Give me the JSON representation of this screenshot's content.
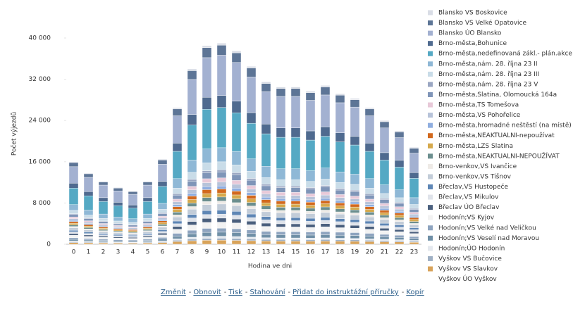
{
  "chart_data": {
    "type": "stacked_bar",
    "x_label": "Hodina ve dni",
    "y_label": "Počet výjezdů",
    "categories": [
      "0",
      "1",
      "2",
      "3",
      "4",
      "5",
      "6",
      "7",
      "8",
      "9",
      "10",
      "11",
      "12",
      "13",
      "14",
      "15",
      "16",
      "17",
      "18",
      "19",
      "20",
      "21",
      "22",
      "23"
    ],
    "ylim": [
      0,
      40000
    ],
    "yticks": [
      0,
      {
        "value": 8000,
        "label": "8 000"
      },
      {
        "value": 16000,
        "label": "16 000"
      },
      {
        "value": 24000,
        "label": "24 000"
      },
      {
        "value": 32000,
        "label": "32 000"
      },
      {
        "value": 40000,
        "label": "40 000"
      }
    ],
    "grid": false,
    "series": [
      {
        "name": "Blansko VS Boskovice",
        "color": "#d9dde6",
        "values": [
          160,
          138,
          122,
          110,
          103,
          122,
          165,
          265,
          340,
          385,
          390,
          375,
          345,
          315,
          305,
          305,
          297,
          308,
          292,
          283,
          265,
          240,
          220,
          188
        ]
      },
      {
        "name": "Blansko VS Velké Opatovice",
        "color": "#5d7596",
        "values": [
          800,
          690,
          610,
          550,
          515,
          610,
          825,
          1325,
          1700,
          1925,
          1950,
          1875,
          1725,
          1575,
          1525,
          1525,
          1485,
          1540,
          1460,
          1415,
          1325,
          1200,
          1100,
          940
        ]
      },
      {
        "name": "Blansko ÚO Blansko",
        "color": "#a3b1d1",
        "values": [
          3200,
          2760,
          2440,
          2200,
          2060,
          2440,
          3300,
          5300,
          6800,
          7700,
          7800,
          7500,
          6900,
          6300,
          6100,
          6100,
          5940,
          6160,
          5840,
          5660,
          5300,
          4800,
          4400,
          3760
        ]
      },
      {
        "name": "Brno-města,Bohunice",
        "color": "#4f6a8f",
        "values": [
          960,
          828,
          732,
          660,
          618,
          732,
          990,
          1590,
          2040,
          2310,
          2340,
          2250,
          2070,
          1890,
          1830,
          1830,
          1782,
          1848,
          1752,
          1698,
          1590,
          1440,
          1320,
          1128
        ]
      },
      {
        "name": "Brno-města,nedefinovaná zákl.- plán.akce",
        "color": "#55a9c4",
        "values": [
          3200,
          2760,
          2440,
          2200,
          2060,
          2440,
          3300,
          5300,
          6800,
          7700,
          7800,
          7500,
          6900,
          6300,
          6100,
          6100,
          5940,
          6160,
          5840,
          5660,
          5300,
          4800,
          4400,
          3760
        ]
      },
      {
        "name": "Brno-města,nám. 28. října 23 II",
        "color": "#8fb8d6",
        "values": [
          1120,
          966,
          854,
          770,
          721,
          854,
          1155,
          1855,
          2380,
          2695,
          2730,
          2625,
          2415,
          2205,
          2135,
          2135,
          2079,
          2156,
          2044,
          1981,
          1855,
          1680,
          1540,
          1316
        ]
      },
      {
        "name": "Brno-města,nám. 28. října 23 III",
        "color": "#c9dce8",
        "values": [
          640,
          552,
          488,
          440,
          412,
          488,
          660,
          1060,
          1360,
          1540,
          1560,
          1500,
          1380,
          1260,
          1220,
          1220,
          1188,
          1232,
          1168,
          1132,
          1060,
          960,
          880,
          752
        ]
      },
      {
        "name": "Brno-města,nám. 28. října 23 V",
        "color": "#9aa6c2",
        "values": [
          160,
          138,
          122,
          110,
          103,
          122,
          165,
          265,
          340,
          385,
          390,
          375,
          345,
          315,
          305,
          305,
          297,
          308,
          292,
          283,
          265,
          240,
          220,
          188
        ]
      },
      {
        "name": "Brno-města,Slatina, Olomoucká 164a",
        "color": "#7f95b8",
        "values": [
          480,
          414,
          366,
          330,
          309,
          366,
          495,
          795,
          1020,
          1155,
          1170,
          1125,
          1035,
          945,
          915,
          915,
          891,
          924,
          876,
          849,
          795,
          720,
          660,
          564
        ]
      },
      {
        "name": "Brno-města,TS Tomešova",
        "color": "#e8c9d8",
        "values": [
          320,
          276,
          244,
          220,
          206,
          244,
          330,
          530,
          680,
          770,
          780,
          750,
          690,
          630,
          610,
          610,
          594,
          616,
          584,
          566,
          530,
          480,
          440,
          376
        ]
      },
      {
        "name": "Brno-města,VS Pohořelice",
        "color": "#b7c3d9",
        "values": [
          320,
          276,
          244,
          220,
          206,
          244,
          330,
          530,
          680,
          770,
          780,
          750,
          690,
          630,
          610,
          610,
          594,
          616,
          584,
          566,
          530,
          480,
          440,
          376
        ]
      },
      {
        "name": "Brno-města,hromadné neštěstí (na místě)",
        "color": "#8faee0",
        "values": [
          240,
          207,
          183,
          165,
          155,
          183,
          248,
          398,
          510,
          578,
          585,
          563,
          518,
          473,
          458,
          458,
          446,
          462,
          438,
          425,
          398,
          360,
          330,
          282
        ]
      },
      {
        "name": "Brno-města,NEAKTUALNI-nepoužívat",
        "color": "#d2691e",
        "values": [
          320,
          276,
          244,
          220,
          206,
          244,
          330,
          530,
          680,
          770,
          780,
          750,
          690,
          630,
          610,
          610,
          594,
          616,
          584,
          566,
          530,
          480,
          440,
          376
        ]
      },
      {
        "name": "Brno-města,LZS Slatina",
        "color": "#d6a94c",
        "values": [
          320,
          276,
          244,
          220,
          206,
          244,
          330,
          530,
          680,
          770,
          780,
          750,
          690,
          630,
          610,
          610,
          594,
          616,
          584,
          566,
          530,
          480,
          440,
          376
        ]
      },
      {
        "name": "Brno-města,NEAKTUALNI-NEPOUŽÍVAT",
        "color": "#6b8e8e",
        "values": [
          320,
          276,
          244,
          220,
          206,
          244,
          330,
          530,
          680,
          770,
          780,
          750,
          690,
          630,
          610,
          610,
          594,
          616,
          584,
          566,
          530,
          480,
          440,
          376
        ]
      },
      {
        "name": "Brno-venkov,VS Ivančice",
        "color": "#eeeae6",
        "values": [
          240,
          207,
          183,
          165,
          155,
          183,
          248,
          398,
          510,
          578,
          585,
          563,
          518,
          473,
          458,
          458,
          446,
          462,
          438,
          425,
          398,
          360,
          330,
          282
        ]
      },
      {
        "name": "Brno-venkov,VS Tišnov",
        "color": "#c2ccd8",
        "values": [
          480,
          414,
          366,
          330,
          309,
          366,
          495,
          795,
          1020,
          1155,
          1170,
          1125,
          1035,
          945,
          915,
          915,
          891,
          924,
          876,
          849,
          795,
          720,
          660,
          564
        ]
      },
      {
        "name": "Břeclav,VS Hustopeče",
        "color": "#5e86b5",
        "values": [
          320,
          276,
          244,
          220,
          206,
          244,
          330,
          530,
          680,
          770,
          780,
          750,
          690,
          630,
          610,
          610,
          594,
          616,
          584,
          566,
          530,
          480,
          440,
          376
        ]
      },
      {
        "name": "Břeclav,VS Mikulov",
        "color": "#dfe3ea",
        "values": [
          320,
          276,
          244,
          220,
          206,
          244,
          330,
          530,
          680,
          770,
          780,
          750,
          690,
          630,
          610,
          610,
          594,
          616,
          584,
          566,
          530,
          480,
          440,
          376
        ]
      },
      {
        "name": "Břeclav ÚO Břeclav",
        "color": "#4a5f7d",
        "values": [
          320,
          276,
          244,
          220,
          206,
          244,
          330,
          530,
          680,
          770,
          780,
          750,
          690,
          630,
          610,
          610,
          594,
          616,
          584,
          566,
          530,
          480,
          440,
          376
        ]
      },
      {
        "name": "Hodonín;VS Kyjov",
        "color": "#f2f2f2",
        "values": [
          480,
          414,
          366,
          330,
          309,
          366,
          495,
          795,
          1020,
          1155,
          1170,
          1125,
          1035,
          945,
          915,
          915,
          891,
          924,
          876,
          849,
          795,
          720,
          660,
          564
        ]
      },
      {
        "name": "Hodonín;VS Velké nad Veličkou",
        "color": "#8ea4bf",
        "values": [
          320,
          276,
          244,
          220,
          206,
          244,
          330,
          530,
          680,
          770,
          780,
          750,
          690,
          630,
          610,
          610,
          594,
          616,
          584,
          566,
          530,
          480,
          440,
          376
        ]
      },
      {
        "name": "Hodonín;VS Veselí nad Moravou",
        "color": "#6f8fa6",
        "values": [
          320,
          276,
          244,
          220,
          206,
          244,
          330,
          530,
          680,
          770,
          780,
          750,
          690,
          630,
          610,
          610,
          594,
          616,
          584,
          566,
          530,
          480,
          440,
          376
        ]
      },
      {
        "name": "Hodonín;ÚO Hodonín",
        "color": "#e4e8ee",
        "values": [
          160,
          138,
          122,
          110,
          103,
          122,
          165,
          265,
          340,
          385,
          390,
          375,
          345,
          315,
          305,
          305,
          297,
          308,
          292,
          283,
          265,
          240,
          220,
          188
        ]
      },
      {
        "name": "Vyškov VS Bučovice",
        "color": "#9fb0c4",
        "values": [
          160,
          138,
          122,
          110,
          103,
          122,
          165,
          265,
          340,
          385,
          390,
          375,
          345,
          315,
          305,
          305,
          297,
          308,
          292,
          283,
          265,
          240,
          220,
          188
        ]
      },
      {
        "name": "Vyškov VS Slavkov",
        "color": "#d8a35a",
        "values": [
          320,
          276,
          244,
          220,
          206,
          244,
          330,
          530,
          680,
          770,
          780,
          750,
          690,
          630,
          610,
          610,
          594,
          616,
          584,
          566,
          530,
          480,
          440,
          376
        ]
      }
    ],
    "legend": "right"
  },
  "footer": {
    "links": [
      "Změnit",
      "Obnovit",
      "Tisk",
      "Stahování",
      "Přidat do instruktážní příručky",
      "Kopír"
    ],
    "separator": "-"
  },
  "legend_extra": "Vyškov ÚO Vyškov"
}
